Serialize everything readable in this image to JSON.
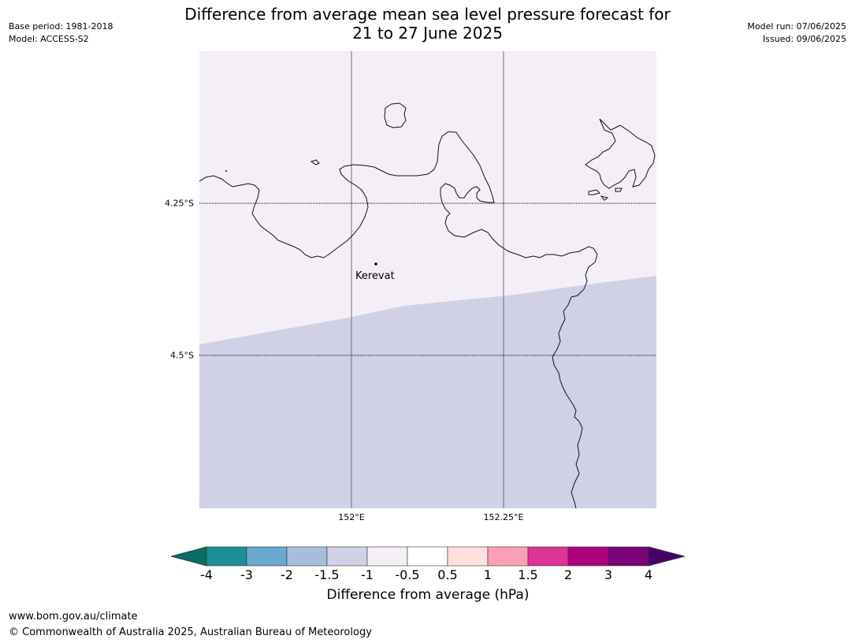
{
  "header": {
    "title_line1": "Difference from average mean sea level pressure forecast for",
    "title_line2": "21 to 27 June 2025",
    "base_period": "Base period: 1981-2018",
    "model": "Model: ACCESS-S2",
    "model_run": "Model run: 07/06/2025",
    "issued": "Issued: 09/06/2025"
  },
  "map": {
    "place_label": "Kerevat",
    "lat_labels": [
      "4.25°S",
      "4.5°S"
    ],
    "lon_labels": [
      "152°E",
      "152.25°E"
    ],
    "fill_colors": {
      "upper": "#f4eef6",
      "lower": "#d0d1e6"
    },
    "fill_class_upper": "-1 to -0.5",
    "fill_class_lower": "-1.5 to -1"
  },
  "colorbar": {
    "ticks": [
      "-4",
      "-3",
      "-2",
      "-1.5",
      "-1",
      "-0.5",
      "0.5",
      "1",
      "1.5",
      "2",
      "3",
      "4"
    ],
    "colors": [
      "#1b8f93",
      "#67a9cf",
      "#a6bddb",
      "#d0d1e6",
      "#f4eef6",
      "#ffffff",
      "#fde0dd",
      "#fa9fb5",
      "#dd3497",
      "#ae017e",
      "#7a0177"
    ],
    "under_color": "#0a6e64",
    "over_color": "#49006a",
    "label": "Difference from average (hPa)"
  },
  "footer": {
    "url": "www.bom.gov.au/climate",
    "copyright": "© Commonwealth of Australia 2025, Australian Bureau of Meteorology"
  }
}
